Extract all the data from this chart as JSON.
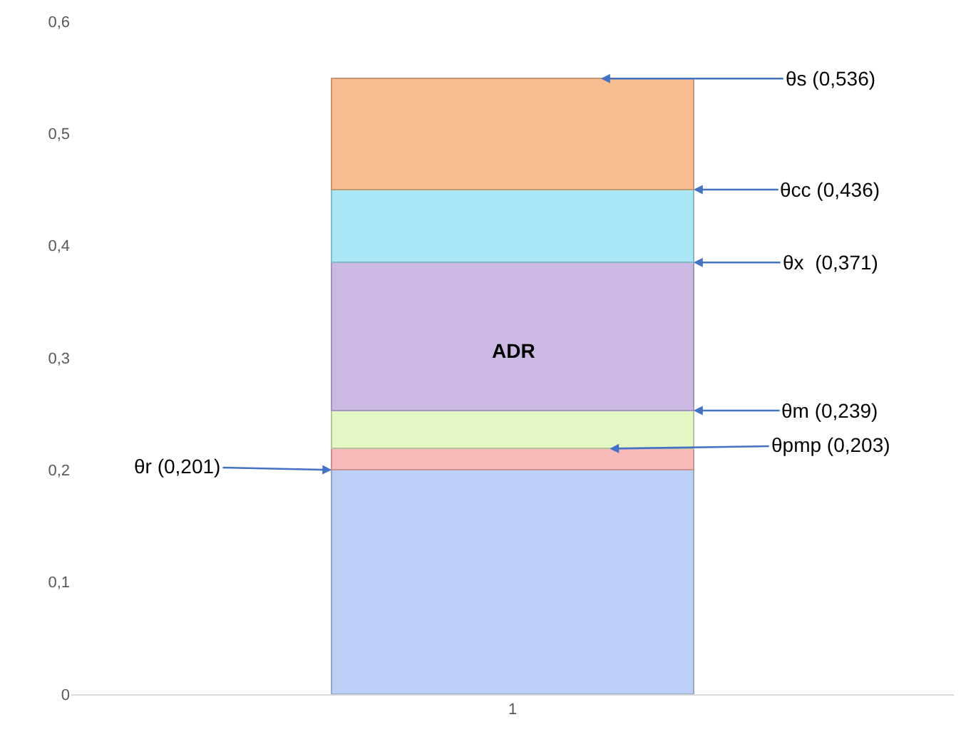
{
  "chart_data": {
    "type": "bar",
    "stacked": true,
    "categories": [
      "1"
    ],
    "series": [
      {
        "color": "#bcd0f7",
        "values": [
          0.2
        ]
      },
      {
        "color": "#f8b9b9",
        "values": [
          0.019
        ]
      },
      {
        "color": "#e3f6c4",
        "values": [
          0.034
        ]
      },
      {
        "color": "#cbb9e4",
        "values": [
          0.132
        ]
      },
      {
        "color": "#a9e7f6",
        "values": [
          0.065
        ]
      },
      {
        "color": "#f9bd92",
        "values": [
          0.099
        ]
      }
    ],
    "ylim": [
      0,
      0.6
    ],
    "yticks": [
      0,
      {
        "value": 0.1,
        "label": "0,1"
      },
      {
        "value": 0.2,
        "label": "0,2"
      },
      {
        "value": 0.3,
        "label": "0,3"
      },
      {
        "value": 0.4,
        "label": "0,4"
      },
      {
        "value": 0.5,
        "label": "0,5"
      },
      {
        "value": 0.6,
        "label": "0,6"
      }
    ],
    "annotations": [
      "θs (0,536)",
      "θcc (0,436)",
      "θx  (0,371)",
      "ADR",
      "θm (0,239)",
      "θpmp (0,203)",
      "θr (0,201)"
    ]
  }
}
